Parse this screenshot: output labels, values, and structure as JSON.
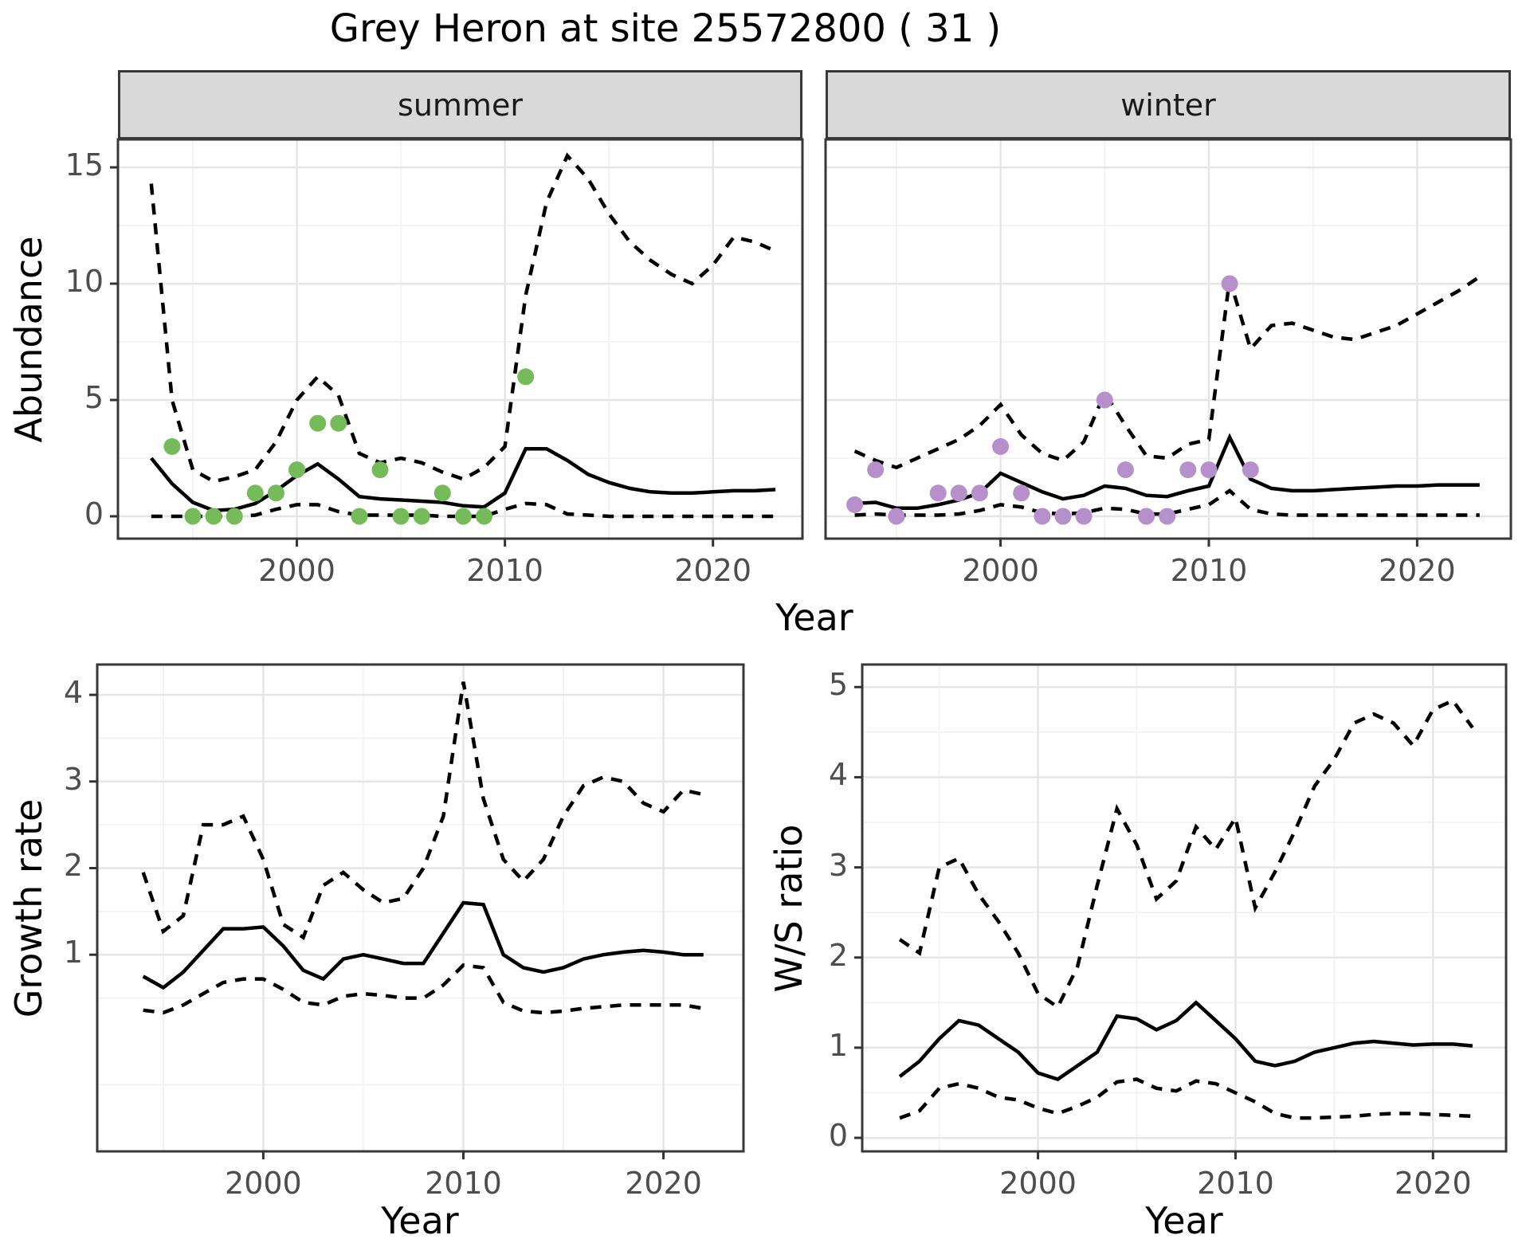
{
  "title": "Grey Heron at site 25572800 ( 31 )",
  "facets": {
    "summer": "summer",
    "winter": "winter"
  },
  "axis_titles": {
    "abundance": "Abundance",
    "year": "Year",
    "growth_rate": "Growth rate",
    "ws_ratio": "W/S ratio"
  },
  "colors": {
    "summer_points": "#76bb5a",
    "winter_points": "#b590ca",
    "fit_line": "#000000",
    "strip_fill": "#d9d9d9",
    "panel_border": "#383838",
    "grid_major": "#e5e5e5",
    "grid_minor": "#f2f2f2",
    "tick_text": "#4d4d4d"
  },
  "chart_data": [
    {
      "id": "abundance_summer",
      "type": "line",
      "facet_label": "summer",
      "xlabel": "Year",
      "ylabel": "Abundance",
      "xlim": [
        1991.4,
        2024.3
      ],
      "ylim": [
        -0.96,
        16.2
      ],
      "xticks": [
        2000,
        2010,
        2020
      ],
      "yticks": [
        0,
        5,
        10,
        15
      ],
      "xminor": [
        1995,
        2005,
        2015
      ],
      "yminor": [
        2.5,
        7.5,
        12.5
      ],
      "show_ylabels": true,
      "x": [
        1993,
        1994,
        1995,
        1996,
        1997,
        1998,
        1999,
        2000,
        2001,
        2002,
        2003,
        2004,
        2005,
        2006,
        2007,
        2008,
        2009,
        2010,
        2011,
        2012,
        2013,
        2014,
        2015,
        2016,
        2017,
        2018,
        2019,
        2020,
        2021,
        2022,
        2023
      ],
      "series": [
        {
          "name": "median-fit",
          "style": "solid",
          "values": [
            2.5,
            1.4,
            0.6,
            0.25,
            0.3,
            0.55,
            1.1,
            1.75,
            2.25,
            1.6,
            0.85,
            0.75,
            0.7,
            0.65,
            0.6,
            0.45,
            0.4,
            1.0,
            2.9,
            2.9,
            2.4,
            1.8,
            1.45,
            1.2,
            1.05,
            1.0,
            1.0,
            1.05,
            1.1,
            1.1,
            1.15
          ]
        },
        {
          "name": "upper-95ci",
          "style": "dashed",
          "values": [
            14.3,
            5.0,
            2.0,
            1.5,
            1.7,
            2.0,
            3.2,
            5.0,
            6.0,
            5.2,
            2.7,
            2.3,
            2.5,
            2.3,
            1.9,
            1.6,
            2.1,
            3.0,
            9.5,
            13.5,
            15.5,
            14.5,
            13.0,
            11.8,
            11.0,
            10.4,
            10.0,
            10.8,
            12.0,
            11.8,
            11.4
          ]
        },
        {
          "name": "lower-95ci",
          "style": "dashed",
          "values": [
            0,
            0,
            0,
            0,
            0,
            0.05,
            0.3,
            0.5,
            0.5,
            0.2,
            0.05,
            0.05,
            0.05,
            0.05,
            0,
            0,
            0,
            0.3,
            0.55,
            0.5,
            0.1,
            0.05,
            0,
            0,
            0,
            0,
            0,
            0,
            0,
            0,
            0
          ]
        }
      ],
      "points": {
        "name": "summer-observed-count",
        "color": "#76bb5a",
        "xy": [
          [
            1994,
            3
          ],
          [
            1995,
            0
          ],
          [
            1996,
            0
          ],
          [
            1997,
            0
          ],
          [
            1998,
            1
          ],
          [
            1999,
            1
          ],
          [
            2000,
            2
          ],
          [
            2001,
            4
          ],
          [
            2002,
            4
          ],
          [
            2003,
            0
          ],
          [
            2004,
            2
          ],
          [
            2005,
            0
          ],
          [
            2006,
            0
          ],
          [
            2007,
            1
          ],
          [
            2008,
            0
          ],
          [
            2009,
            0
          ],
          [
            2011,
            6
          ]
        ]
      }
    },
    {
      "id": "abundance_winter",
      "type": "line",
      "facet_label": "winter",
      "xlabel": "Year",
      "ylabel": "Abundance",
      "xlim": [
        1991.6,
        2024.5
      ],
      "ylim": [
        -0.96,
        16.2
      ],
      "xticks": [
        2000,
        2010,
        2020
      ],
      "yticks": [
        0,
        5,
        10,
        15
      ],
      "xminor": [
        1995,
        2005,
        2015
      ],
      "yminor": [
        2.5,
        7.5,
        12.5
      ],
      "show_ylabels": false,
      "x": [
        1993,
        1994,
        1995,
        1996,
        1997,
        1998,
        1999,
        2000,
        2001,
        2002,
        2003,
        2004,
        2005,
        2006,
        2007,
        2008,
        2009,
        2010,
        2011,
        2012,
        2013,
        2014,
        2015,
        2016,
        2017,
        2018,
        2019,
        2020,
        2021,
        2022,
        2023
      ],
      "series": [
        {
          "name": "median-fit",
          "style": "solid",
          "values": [
            0.55,
            0.6,
            0.35,
            0.35,
            0.5,
            0.7,
            1.0,
            1.85,
            1.45,
            1.05,
            0.75,
            0.9,
            1.3,
            1.2,
            0.9,
            0.85,
            1.1,
            1.3,
            3.4,
            1.6,
            1.2,
            1.1,
            1.1,
            1.15,
            1.2,
            1.25,
            1.3,
            1.3,
            1.35,
            1.35,
            1.35
          ]
        },
        {
          "name": "upper-95ci",
          "style": "dashed",
          "values": [
            2.8,
            2.4,
            2.1,
            2.5,
            2.9,
            3.3,
            3.9,
            4.8,
            3.5,
            2.7,
            2.4,
            3.2,
            5.3,
            3.9,
            2.6,
            2.5,
            3.1,
            3.3,
            10.2,
            7.2,
            8.2,
            8.3,
            8.0,
            7.7,
            7.6,
            7.9,
            8.2,
            8.7,
            9.2,
            9.7,
            10.3
          ]
        },
        {
          "name": "lower-95ci",
          "style": "dashed",
          "values": [
            0.05,
            0.1,
            0.05,
            0.05,
            0.05,
            0.1,
            0.25,
            0.5,
            0.4,
            0.15,
            0.1,
            0.15,
            0.35,
            0.3,
            0.1,
            0.1,
            0.3,
            0.5,
            1.1,
            0.3,
            0.1,
            0.05,
            0.05,
            0.05,
            0.05,
            0.05,
            0.05,
            0.05,
            0.05,
            0.05,
            0.05
          ]
        }
      ],
      "points": {
        "name": "winter-observed-count",
        "color": "#b590ca",
        "xy": [
          [
            1993,
            0.5
          ],
          [
            1994,
            2
          ],
          [
            1995,
            0
          ],
          [
            1997,
            1
          ],
          [
            1998,
            1
          ],
          [
            1999,
            1
          ],
          [
            2000,
            3
          ],
          [
            2001,
            1
          ],
          [
            2002,
            0
          ],
          [
            2003,
            0
          ],
          [
            2004,
            0
          ],
          [
            2005,
            5
          ],
          [
            2006,
            2
          ],
          [
            2007,
            0
          ],
          [
            2008,
            0
          ],
          [
            2009,
            2
          ],
          [
            2010,
            2
          ],
          [
            2011,
            10
          ],
          [
            2012,
            2
          ]
        ]
      }
    },
    {
      "id": "growth_rate",
      "type": "line",
      "xlabel": "Year",
      "ylabel": "Growth rate",
      "xlim": [
        1991.7,
        2024.0
      ],
      "ylim": [
        -1.27,
        4.35
      ],
      "xticks": [
        2000,
        2010,
        2020
      ],
      "yticks": [
        1,
        2,
        3,
        4
      ],
      "xminor": [
        1995,
        2005,
        2015
      ],
      "yminor": [
        -0.5,
        0.5,
        1.5,
        2.5,
        3.5
      ],
      "show_ylabels": true,
      "x": [
        1994,
        1995,
        1996,
        1997,
        1998,
        1999,
        2000,
        2001,
        2002,
        2003,
        2004,
        2005,
        2006,
        2007,
        2008,
        2009,
        2010,
        2011,
        2012,
        2013,
        2014,
        2015,
        2016,
        2017,
        2018,
        2019,
        2020,
        2021,
        2022
      ],
      "series": [
        {
          "name": "median-fit",
          "style": "solid",
          "values": [
            0.75,
            0.62,
            0.8,
            1.05,
            1.3,
            1.3,
            1.32,
            1.1,
            0.82,
            0.72,
            0.95,
            1.0,
            0.95,
            0.9,
            0.9,
            1.25,
            1.6,
            1.58,
            1.0,
            0.85,
            0.8,
            0.85,
            0.95,
            1.0,
            1.03,
            1.05,
            1.03,
            1.0,
            1.0
          ]
        },
        {
          "name": "upper-95ci",
          "style": "dashed",
          "values": [
            1.95,
            1.27,
            1.45,
            2.5,
            2.5,
            2.6,
            2.1,
            1.35,
            1.2,
            1.8,
            1.95,
            1.75,
            1.6,
            1.65,
            2.0,
            2.6,
            4.15,
            2.8,
            2.1,
            1.85,
            2.1,
            2.6,
            2.95,
            3.05,
            3.0,
            2.75,
            2.65,
            2.9,
            2.85
          ]
        },
        {
          "name": "lower-95ci",
          "style": "dashed",
          "values": [
            0.36,
            0.33,
            0.42,
            0.55,
            0.68,
            0.72,
            0.72,
            0.6,
            0.45,
            0.42,
            0.52,
            0.55,
            0.53,
            0.5,
            0.5,
            0.65,
            0.88,
            0.85,
            0.45,
            0.35,
            0.33,
            0.35,
            0.38,
            0.4,
            0.42,
            0.42,
            0.42,
            0.42,
            0.38
          ]
        }
      ]
    },
    {
      "id": "ws_ratio",
      "type": "line",
      "xlabel": "Year",
      "ylabel": "W/S ratio",
      "xlim": [
        1991.1,
        2023.7
      ],
      "ylim": [
        -0.15,
        5.25
      ],
      "xticks": [
        2000,
        2010,
        2020
      ],
      "yticks": [
        0,
        1,
        2,
        3,
        4,
        5
      ],
      "xminor": [
        1995,
        2005,
        2015
      ],
      "yminor": [
        0.5,
        1.5,
        2.5,
        3.5,
        4.5
      ],
      "show_ylabels": true,
      "x": [
        1993,
        1994,
        1995,
        1996,
        1997,
        1998,
        1999,
        2000,
        2001,
        2002,
        2003,
        2004,
        2005,
        2006,
        2007,
        2008,
        2009,
        2010,
        2011,
        2012,
        2013,
        2014,
        2015,
        2016,
        2017,
        2018,
        2019,
        2020,
        2021,
        2022
      ],
      "series": [
        {
          "name": "median-fit",
          "style": "solid",
          "values": [
            0.68,
            0.85,
            1.1,
            1.3,
            1.25,
            1.1,
            0.95,
            0.72,
            0.65,
            0.8,
            0.95,
            1.35,
            1.32,
            1.2,
            1.3,
            1.5,
            1.3,
            1.1,
            0.85,
            0.8,
            0.85,
            0.95,
            1.0,
            1.05,
            1.07,
            1.05,
            1.03,
            1.04,
            1.04,
            1.02
          ]
        },
        {
          "name": "upper-95ci",
          "style": "dashed",
          "values": [
            2.2,
            2.05,
            3.0,
            3.1,
            2.7,
            2.4,
            2.05,
            1.6,
            1.45,
            1.9,
            2.8,
            3.65,
            3.25,
            2.65,
            2.85,
            3.45,
            3.2,
            3.55,
            2.55,
            2.95,
            3.4,
            3.9,
            4.2,
            4.6,
            4.7,
            4.6,
            4.35,
            4.75,
            4.85,
            4.55
          ]
        },
        {
          "name": "lower-95ci",
          "style": "dashed",
          "values": [
            0.22,
            0.3,
            0.55,
            0.6,
            0.55,
            0.45,
            0.42,
            0.33,
            0.27,
            0.35,
            0.45,
            0.62,
            0.65,
            0.55,
            0.52,
            0.63,
            0.6,
            0.5,
            0.4,
            0.27,
            0.22,
            0.22,
            0.23,
            0.24,
            0.26,
            0.27,
            0.27,
            0.26,
            0.25,
            0.24
          ]
        }
      ]
    }
  ]
}
